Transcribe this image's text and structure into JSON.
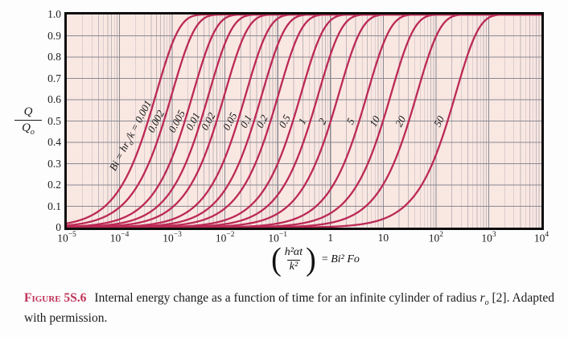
{
  "figure_caption": {
    "label": "Figure 5S.6",
    "text_part1": "Internal energy change as a function of time for an infinite cylinder of radius ",
    "r_italic": "r",
    "r_sub": "o",
    "text_part2": " [2]. Adapted with permission."
  },
  "y_axis": {
    "fraction_numerator": "Q",
    "fraction_denominator_main": "Q",
    "fraction_denominator_sub": "o",
    "ticks": [
      "1.0",
      "0.9",
      "0.8",
      "0.7",
      "0.6",
      "0.5",
      "0.4",
      "0.3",
      "0.2",
      "0.1",
      "0"
    ]
  },
  "x_axis": {
    "ticks": [
      {
        "base": "10",
        "exp": "−5"
      },
      {
        "base": "10",
        "exp": "−4"
      },
      {
        "base": "10",
        "exp": "−3"
      },
      {
        "base": "10",
        "exp": "−2"
      },
      {
        "base": "10",
        "exp": "−1"
      },
      {
        "base": "1",
        "exp": ""
      },
      {
        "base": "10",
        "exp": ""
      },
      {
        "base": "10",
        "exp": "2"
      },
      {
        "base": "10",
        "exp": "3"
      },
      {
        "base": "10",
        "exp": "4"
      }
    ],
    "formula": {
      "paren_open": "(",
      "frac_num": "h²αt",
      "frac_den": "k²",
      "equals": "= ",
      "rhs_expr": "Bi² Fo",
      "paren_close": ")"
    }
  },
  "chart_data": {
    "type": "line",
    "title": "",
    "xlabel": "(h²αt/k²) = Bi²Fo",
    "ylabel": "Q/Qo",
    "x_scale": "log",
    "xlim": [
      1e-05,
      10000.0
    ],
    "ylim": [
      0,
      1
    ],
    "grid": true,
    "curve_color": "#bb2955",
    "plot_bg": "#f9e7e2",
    "grid_major_color": "#8a8a92",
    "grid_minor_color": "#c0b7b9",
    "parameter_name": "Bi = h r_o / k",
    "point_y_values": [
      0.1,
      0.3,
      0.5,
      0.7,
      0.9,
      0.99
    ],
    "series": [
      {
        "bi": 0.001,
        "label": "0.001",
        "x50": 0.000347,
        "points": [
          [
            5.3e-05,
            0.1
          ],
          [
            0.000179,
            0.3
          ],
          [
            0.000347,
            0.5
          ],
          [
            0.0006,
            0.7
          ],
          [
            0.00115,
            0.9
          ],
          [
            0.00231,
            0.99
          ]
        ]
      },
      {
        "bi": 0.002,
        "label": "0.002",
        "x50": 0.000693,
        "points": [
          [
            0.000105,
            0.1
          ],
          [
            0.000357,
            0.3
          ],
          [
            0.000693,
            0.5
          ],
          [
            0.0012,
            0.7
          ],
          [
            0.0023,
            0.9
          ],
          [
            0.0046,
            0.99
          ]
        ]
      },
      {
        "bi": 0.005,
        "label": "0.005",
        "x50": 0.00173,
        "points": [
          [
            0.00026,
            0.1
          ],
          [
            0.00089,
            0.3
          ],
          [
            0.00173,
            0.5
          ],
          [
            0.003,
            0.7
          ],
          [
            0.00575,
            0.9
          ],
          [
            0.0115,
            0.99
          ]
        ]
      },
      {
        "bi": 0.01,
        "label": "0.01",
        "x50": 0.00347,
        "points": [
          [
            0.00053,
            0.1
          ],
          [
            0.00179,
            0.3
          ],
          [
            0.00347,
            0.5
          ],
          [
            0.006,
            0.7
          ],
          [
            0.0115,
            0.9
          ],
          [
            0.0231,
            0.99
          ]
        ]
      },
      {
        "bi": 0.02,
        "label": "0.02",
        "x50": 0.00694,
        "points": [
          [
            0.00106,
            0.1
          ],
          [
            0.00357,
            0.3
          ],
          [
            0.00694,
            0.5
          ],
          [
            0.0121,
            0.7
          ],
          [
            0.0231,
            0.9
          ],
          [
            0.0461,
            0.99
          ]
        ]
      },
      {
        "bi": 0.05,
        "label": "0.05",
        "x50": 0.0175,
        "points": [
          [
            0.00266,
            0.1
          ],
          [
            0.009,
            0.3
          ],
          [
            0.0175,
            0.5
          ],
          [
            0.0304,
            0.7
          ],
          [
            0.0581,
            0.9
          ],
          [
            0.116,
            0.99
          ]
        ]
      },
      {
        "bi": 0.1,
        "label": "0.1",
        "x50": 0.0355,
        "points": [
          [
            0.0054,
            0.1
          ],
          [
            0.0183,
            0.3
          ],
          [
            0.0355,
            0.5
          ],
          [
            0.0617,
            0.7
          ],
          [
            0.118,
            0.9
          ],
          [
            0.236,
            0.99
          ]
        ]
      },
      {
        "bi": 0.2,
        "label": "0.2",
        "x50": 0.073,
        "points": [
          [
            0.0111,
            0.1
          ],
          [
            0.0376,
            0.3
          ],
          [
            0.073,
            0.5
          ],
          [
            0.127,
            0.7
          ],
          [
            0.243,
            0.9
          ],
          [
            0.485,
            0.99
          ]
        ]
      },
      {
        "bi": 0.5,
        "label": "0.5",
        "x50": 0.194,
        "points": [
          [
            0.0295,
            0.1
          ],
          [
            0.0998,
            0.3
          ],
          [
            0.194,
            0.5
          ],
          [
            0.337,
            0.7
          ],
          [
            0.644,
            0.9
          ],
          [
            1.29,
            0.99
          ]
        ]
      },
      {
        "bi": 1,
        "label": "1",
        "x50": 0.415,
        "points": [
          [
            0.063,
            0.1
          ],
          [
            0.214,
            0.3
          ],
          [
            0.415,
            0.5
          ],
          [
            0.721,
            0.7
          ],
          [
            1.38,
            0.9
          ],
          [
            2.76,
            0.99
          ]
        ]
      },
      {
        "bi": 2,
        "label": "2",
        "x50": 1.01,
        "points": [
          [
            0.154,
            0.1
          ],
          [
            0.52,
            0.3
          ],
          [
            1.01,
            0.5
          ],
          [
            1.75,
            0.7
          ],
          [
            3.36,
            0.9
          ],
          [
            6.71,
            0.99
          ]
        ]
      },
      {
        "bi": 5,
        "label": "5",
        "x50": 3.5,
        "points": [
          [
            0.53,
            0.1
          ],
          [
            1.8,
            0.3
          ],
          [
            3.5,
            0.5
          ],
          [
            6.08,
            0.7
          ],
          [
            11.6,
            0.9
          ],
          [
            23.3,
            0.99
          ]
        ]
      },
      {
        "bi": 10,
        "label": "10",
        "x50": 9.9,
        "points": [
          [
            1.5,
            0.1
          ],
          [
            5.1,
            0.3
          ],
          [
            9.9,
            0.5
          ],
          [
            17.2,
            0.7
          ],
          [
            32.9,
            0.9
          ],
          [
            65.8,
            0.99
          ]
        ]
      },
      {
        "bi": 20,
        "label": "20",
        "x50": 30.6,
        "points": [
          [
            4.65,
            0.1
          ],
          [
            15.7,
            0.3
          ],
          [
            30.6,
            0.5
          ],
          [
            53.2,
            0.7
          ],
          [
            102,
            0.9
          ],
          [
            203,
            0.99
          ]
        ]
      },
      {
        "bi": 50,
        "label": "50",
        "x50": 166,
        "points": [
          [
            25.2,
            0.1
          ],
          [
            85.4,
            0.3
          ],
          [
            166,
            0.5
          ],
          [
            288,
            0.7
          ],
          [
            551,
            0.9
          ],
          [
            1103,
            0.99
          ]
        ]
      }
    ],
    "first_curve_label": {
      "bi": "Bi",
      "eq1": " = ",
      "var": "hr",
      "var_sub": "o",
      "slash_k": "/k",
      "eq2": " = ",
      "value": "0.001"
    }
  }
}
